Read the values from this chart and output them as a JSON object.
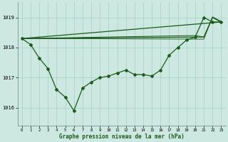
{
  "xlabel": "Graphe pression niveau de la mer (hPa)",
  "bg_color": "#cce8e0",
  "grid_color": "#aad4c8",
  "line_color": "#1a5c1a",
  "ylim": [
    1015.4,
    1019.5
  ],
  "yticks": [
    1016,
    1017,
    1018,
    1019
  ],
  "xlim": [
    -0.5,
    23.5
  ],
  "xticks": [
    0,
    1,
    2,
    3,
    4,
    5,
    6,
    7,
    8,
    9,
    10,
    11,
    12,
    13,
    14,
    15,
    16,
    17,
    18,
    19,
    20,
    21,
    22,
    23
  ],
  "detail_x": [
    0,
    1,
    2,
    3,
    4,
    5,
    6,
    7,
    8,
    9,
    10,
    11,
    12,
    13,
    14,
    15,
    16,
    17,
    18,
    19,
    20,
    21,
    22,
    23
  ],
  "detail_y": [
    1018.3,
    1018.1,
    1017.65,
    1017.3,
    1016.6,
    1016.35,
    1015.9,
    1016.65,
    1016.85,
    1017.0,
    1017.05,
    1017.15,
    1017.25,
    1017.1,
    1017.1,
    1017.05,
    1017.25,
    1017.75,
    1018.0,
    1018.25,
    1018.35,
    1019.0,
    1018.85,
    1018.85
  ],
  "trend1_x": [
    0,
    23
  ],
  "trend1_y": [
    1018.3,
    1018.85
  ],
  "trend2_x": [
    0,
    21,
    22,
    23
  ],
  "trend2_y": [
    1018.3,
    1018.25,
    1019.0,
    1018.85
  ],
  "trend3_x": [
    0,
    20,
    21,
    22,
    23
  ],
  "trend3_y": [
    1018.3,
    1018.35,
    1019.0,
    1018.85,
    1018.85
  ],
  "trend4_x": [
    0,
    21,
    22,
    23
  ],
  "trend4_y": [
    1018.3,
    1018.25,
    1019.0,
    1018.85
  ],
  "marker": "D",
  "markersize": 2.0,
  "linewidth": 0.9
}
